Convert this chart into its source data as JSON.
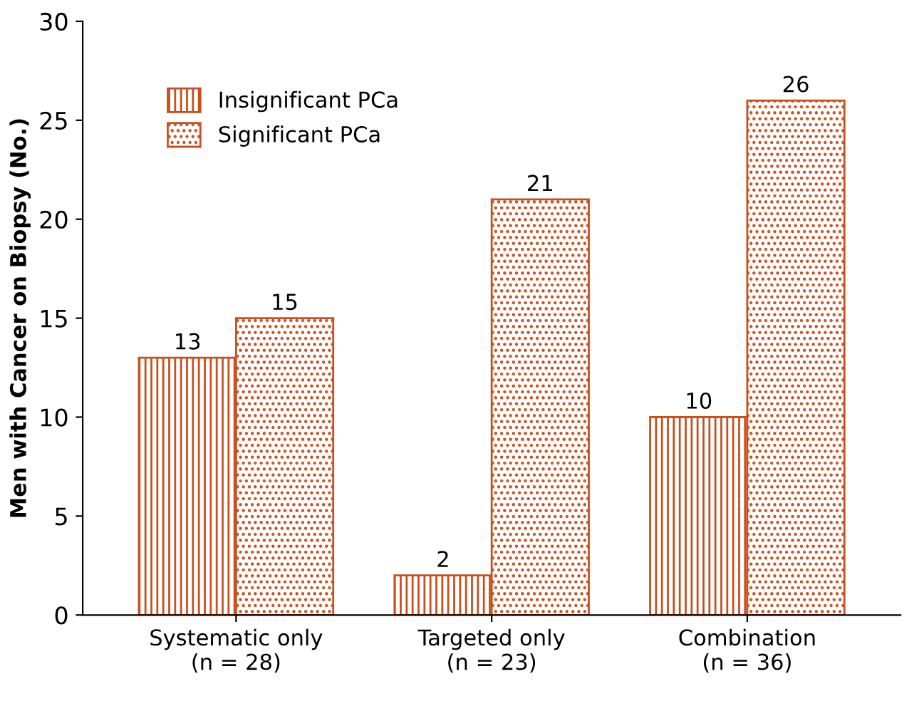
{
  "chart_data": {
    "type": "bar",
    "ylabel": "Men with Cancer on Biopsy (No.)",
    "categories": [
      "Systematic only\n(n = 28)",
      "Targeted only\n(n = 23)",
      "Combination\n(n = 36)"
    ],
    "series": [
      {
        "name": "Insignificant PCa",
        "color": "#c8501e",
        "values": [
          13,
          2,
          10
        ]
      },
      {
        "name": "Significant PCa",
        "color": "#c8501e",
        "values": [
          15,
          21,
          26
        ]
      }
    ],
    "ylim": [
      0,
      30
    ],
    "yticks": [
      0,
      5,
      10,
      15,
      20,
      25,
      30
    ],
    "grid": false,
    "legend": "top left",
    "data_labels": true
  }
}
